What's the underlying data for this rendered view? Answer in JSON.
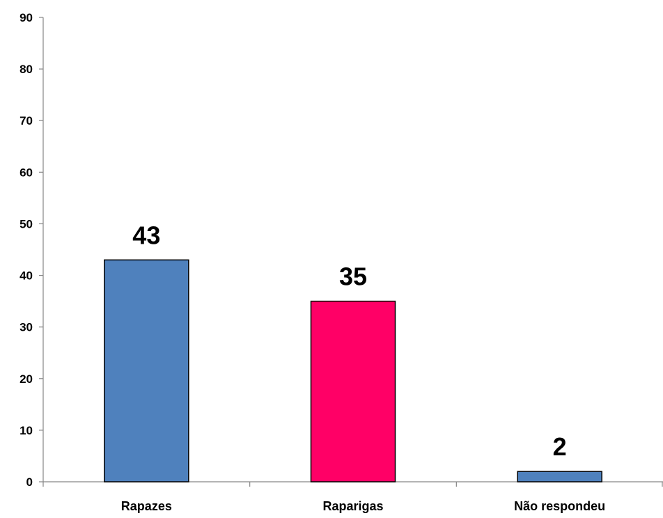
{
  "chart_data": {
    "type": "bar",
    "categories": [
      "Rapazes",
      "Raparigas",
      "Não respondeu"
    ],
    "values": [
      43,
      35,
      2
    ],
    "data_labels": [
      "43",
      "35",
      "2"
    ],
    "bar_colors": [
      "#4f81bd",
      "#ff0066",
      "#4f81bd"
    ],
    "title": "",
    "xlabel": "",
    "ylabel": "",
    "ylim": [
      0,
      90
    ],
    "yticks": [
      0,
      10,
      20,
      30,
      40,
      50,
      60,
      70,
      80,
      90
    ],
    "ytick_labels": [
      "0",
      "10",
      "20",
      "30",
      "40",
      "50",
      "60",
      "70",
      "80",
      "90"
    ],
    "grid": false,
    "legend": "none"
  }
}
